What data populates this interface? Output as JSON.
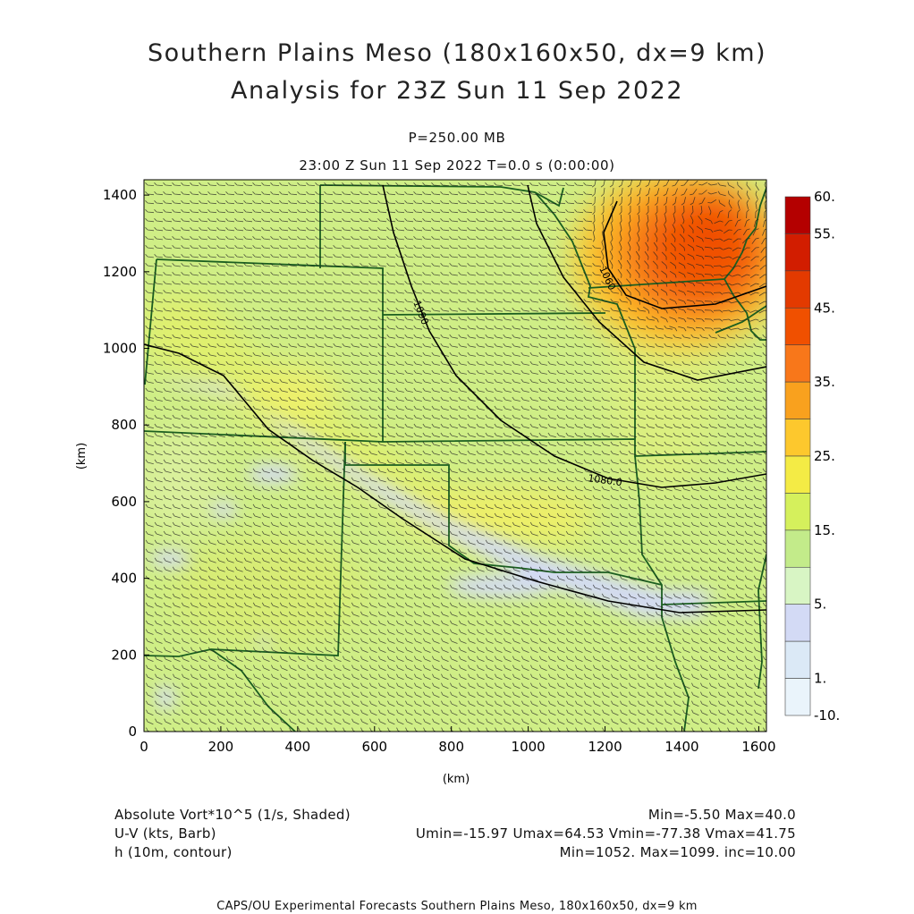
{
  "title": {
    "line1": "Southern Plains Meso (180x160x50, dx=9 km)",
    "line2": "Analysis for 23Z Sun 11 Sep 2022"
  },
  "subtitle": {
    "level": "P=250.00 MB",
    "time": "23:00 Z Sun 11 Sep 2022    T=0.0 s (0:00:00)"
  },
  "axes": {
    "x_label": "(km)",
    "y_label": "(km)",
    "x_ticks": [
      "0",
      "200",
      "400",
      "600",
      "800",
      "1000",
      "1200",
      "1400",
      "1600"
    ],
    "y_ticks": [
      "0",
      "200",
      "400",
      "600",
      "800",
      "1000",
      "1200",
      "1400"
    ],
    "x_range_km": [
      0,
      1620
    ],
    "y_range_km": [
      0,
      1440
    ]
  },
  "colorbar": {
    "labels": [
      "60.",
      "55.",
      "45.",
      "35.",
      "25.",
      "15.",
      "5.",
      "1.",
      "-10."
    ],
    "colors_top_to_bottom": [
      "#b40000",
      "#d21d00",
      "#e33a00",
      "#f05000",
      "#f8771a",
      "#f9a11e",
      "#fdc82d",
      "#f4eb45",
      "#d5f05c",
      "#c3eb8a",
      "#d8f5c4",
      "#d3daf5",
      "#dbe9f6",
      "#eaf4fb"
    ]
  },
  "contours": {
    "labels": [
      "1060",
      "1080.0",
      "1090"
    ]
  },
  "legend": {
    "field1_name": "Absolute Vort*10^5 (1/s, Shaded)",
    "field1_stats": "Min=-5.50 Max=40.0",
    "field2_name": "U-V (kts, Barb)",
    "field2_stats": "Umin=-15.97 Umax=64.53 Vmin=-77.38 Vmax=41.75",
    "field3_name": "h (10m, contour)",
    "field3_stats": "Min=1052. Max=1099. inc=10.00"
  },
  "footer": "CAPS/OU Experimental Forecasts  Southern Plains Meso, 180x160x50, dx=9 km",
  "colors": {
    "border": "#1b5e20",
    "contour": "#000000",
    "barb": "#222222"
  }
}
